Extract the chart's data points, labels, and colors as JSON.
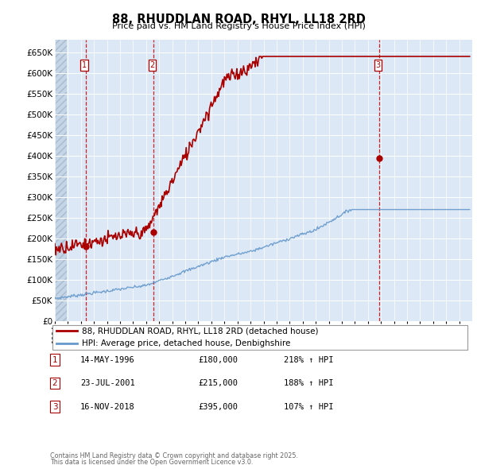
{
  "title": "88, RHUDDLAN ROAD, RHYL, LL18 2RD",
  "subtitle": "Price paid vs. HM Land Registry's House Price Index (HPI)",
  "plot_bg_color": "#dce8f5",
  "hatch_area_color": "#c5d5e8",
  "red_line_color": "#aa0000",
  "blue_line_color": "#6699cc",
  "vline_color": "#cc0000",
  "ylim": [
    0,
    680000
  ],
  "yticks": [
    0,
    50000,
    100000,
    150000,
    200000,
    250000,
    300000,
    350000,
    400000,
    450000,
    500000,
    550000,
    600000,
    650000
  ],
  "ytick_labels": [
    "£0",
    "£50K",
    "£100K",
    "£150K",
    "£200K",
    "£250K",
    "£300K",
    "£350K",
    "£400K",
    "£450K",
    "£500K",
    "£550K",
    "£600K",
    "£650K"
  ],
  "xmin": 1994.0,
  "xmax": 2026.0,
  "sales": [
    {
      "label": "1",
      "date_str": "14-MAY-1996",
      "year": 1996.37,
      "price": 180000,
      "hpi_pct": "218%"
    },
    {
      "label": "2",
      "date_str": "23-JUL-2001",
      "year": 2001.56,
      "price": 215000,
      "hpi_pct": "188%"
    },
    {
      "label": "3",
      "date_str": "16-NOV-2018",
      "year": 2018.88,
      "price": 395000,
      "hpi_pct": "107%"
    }
  ],
  "legend_line1": "88, RHUDDLAN ROAD, RHYL, LL18 2RD (detached house)",
  "legend_line2": "HPI: Average price, detached house, Denbighshire",
  "footer1": "Contains HM Land Registry data © Crown copyright and database right 2025.",
  "footer2": "This data is licensed under the Open Government Licence v3.0.",
  "table_entries": [
    {
      "num": "1",
      "date": "14-MAY-1996",
      "price": "£180,000",
      "hpi": "218% ↑ HPI"
    },
    {
      "num": "2",
      "date": "23-JUL-2001",
      "price": "£215,000",
      "hpi": "188% ↑ HPI"
    },
    {
      "num": "3",
      "date": "16-NOV-2018",
      "price": "£395,000",
      "hpi": "107% ↑ HPI"
    }
  ]
}
